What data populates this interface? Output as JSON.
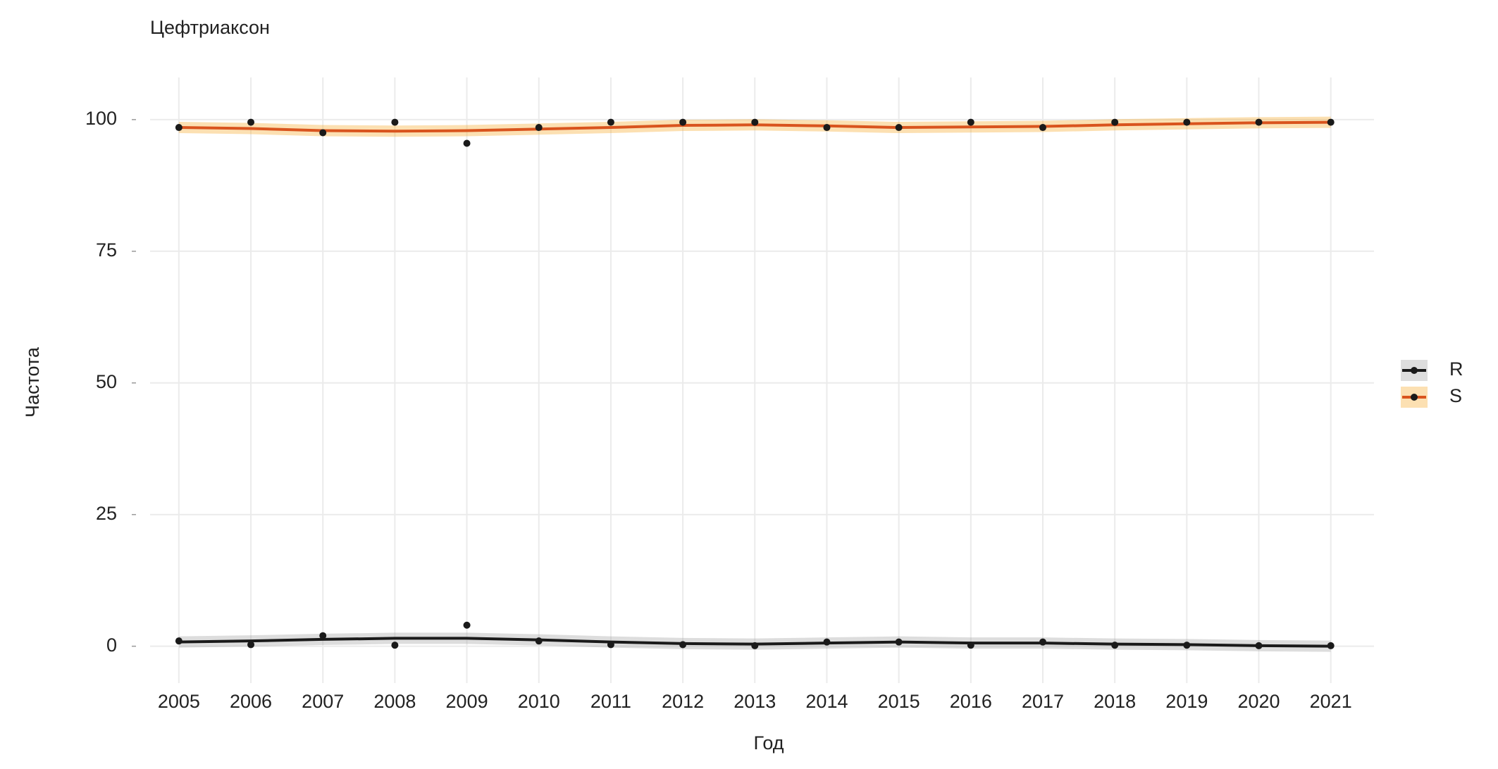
{
  "chart_data": {
    "type": "line",
    "title": "Цефтриаксон",
    "x_label": "Год",
    "y_label": "Частота",
    "x": [
      2005,
      2006,
      2007,
      2008,
      2009,
      2010,
      2011,
      2012,
      2013,
      2014,
      2015,
      2016,
      2017,
      2018,
      2019,
      2020,
      2021
    ],
    "xlim": [
      2004.6,
      2021.6
    ],
    "xticks": [
      2005,
      2006,
      2007,
      2008,
      2009,
      2010,
      2011,
      2012,
      2013,
      2014,
      2015,
      2016,
      2017,
      2018,
      2019,
      2020,
      2021
    ],
    "ylim": [
      -7,
      108
    ],
    "yticks": [
      0,
      25,
      50,
      75,
      100
    ],
    "grid": true,
    "legend": "right",
    "series": [
      {
        "name": "R",
        "color": "#1a1a1a",
        "band_color": "#9e9e9e",
        "values": [
          1,
          0.3,
          2,
          0.2,
          4,
          1,
          0.3,
          0.3,
          0.1,
          0.8,
          0.8,
          0.2,
          0.8,
          0.2,
          0.2,
          0.1,
          0.1
        ],
        "trend": [
          0.8,
          1.0,
          1.3,
          1.5,
          1.5,
          1.2,
          0.8,
          0.5,
          0.4,
          0.6,
          0.8,
          0.6,
          0.6,
          0.4,
          0.3,
          0.1,
          0.0
        ]
      },
      {
        "name": "S",
        "color": "#d9541e",
        "band_color": "#f5a623",
        "values": [
          98.5,
          99.5,
          97.5,
          99.5,
          95.5,
          98.5,
          99.5,
          99.5,
          99.5,
          98.5,
          98.5,
          99.5,
          98.5,
          99.5,
          99.5,
          99.5,
          99.5
        ],
        "trend": [
          98.5,
          98.3,
          97.9,
          97.8,
          97.9,
          98.2,
          98.5,
          98.9,
          99.0,
          98.8,
          98.5,
          98.6,
          98.7,
          99.0,
          99.2,
          99.4,
          99.5
        ]
      }
    ]
  }
}
